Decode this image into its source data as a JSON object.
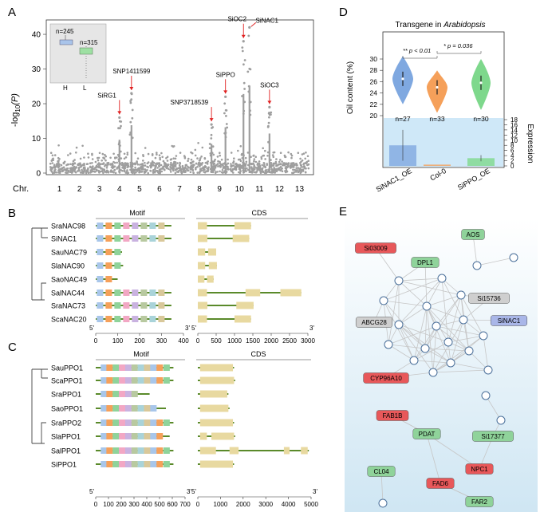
{
  "panels": {
    "A": {
      "letter": "A",
      "ylabel": "-log",
      "ylabel_sub": "10",
      "ylabel_p": "(P)",
      "yticks": [
        "0",
        "10",
        "20",
        "30",
        "40"
      ],
      "xlabel": "Chr.",
      "chromosomes": [
        "1",
        "2",
        "3",
        "4",
        "5",
        "6",
        "7",
        "8",
        "9",
        "10",
        "11",
        "12",
        "13"
      ],
      "inset": {
        "n_h": "n=245",
        "n_l": "n=315",
        "label_h": "H",
        "label_l": "L"
      },
      "snps": [
        {
          "label": "SiRG1",
          "chr": 4,
          "peak": 16
        },
        {
          "label": "SNP1411599",
          "chr": 4.6,
          "peak": 23
        },
        {
          "label": "SNP3718539",
          "chr": 8.6,
          "peak": 14
        },
        {
          "label": "SiPPO",
          "chr": 9.3,
          "peak": 22
        },
        {
          "label": "SiOC2",
          "chr": 10.2,
          "peak": 38
        },
        {
          "label": "SiNAC1",
          "chr": 10.5,
          "peak": 42
        },
        {
          "label": "SiOC3",
          "chr": 11.5,
          "peak": 19
        }
      ]
    },
    "B": {
      "letter": "B",
      "motif_title": "Motif",
      "cds_title": "CDS",
      "genes": [
        "SraNAC98",
        "SiNAC1",
        "SauNAC79",
        "SlaNAC90",
        "SaoNAC49",
        "SalNAC44",
        "SraNAC73",
        "ScaNAC20"
      ],
      "motif_ticks": [
        "0",
        "100",
        "200",
        "300",
        "400"
      ],
      "motif_unit_start": "5'",
      "motif_unit_end": "3'",
      "cds_ticks": [
        "0",
        "500",
        "1000",
        "1500",
        "2000",
        "2500",
        "3000"
      ],
      "cds_unit_start": "5'",
      "cds_unit_end": "3'"
    },
    "C": {
      "letter": "C",
      "motif_title": "Motif",
      "cds_title": "CDS",
      "genes": [
        "SauPPO1",
        "ScaPPO1",
        "SraPPO1",
        "SaoPPO1",
        "SraPPO2",
        "SlaPPO1",
        "SalPPO1",
        "SiPPO1"
      ],
      "motif_ticks": [
        "0",
        "100",
        "200",
        "300",
        "400",
        "500",
        "600",
        "700"
      ],
      "motif_unit_start": "5'",
      "motif_unit_end": "3'",
      "cds_ticks": [
        "0",
        "1000",
        "2000",
        "3000",
        "4000",
        "5000"
      ],
      "cds_unit_start": "5'",
      "cds_unit_end": "3'"
    },
    "D": {
      "letter": "D",
      "title_prefix": "Transgene in ",
      "title_species": "Arabidopsis",
      "ylabel": "Oil content (%)",
      "yticks": [
        "20",
        "22",
        "24",
        "26",
        "28",
        "30"
      ],
      "y2label": "Expression",
      "y2ticks": [
        "0",
        "2",
        "4",
        "6",
        "8",
        "10",
        "12",
        "14",
        "16",
        "18"
      ],
      "sig1": "** p < 0.01",
      "sig2": "* p = 0.036",
      "groups": [
        {
          "name": "SiNAC1_OE",
          "n": "n=27",
          "color": "#7fa8e0",
          "expression": 8
        },
        {
          "name": "Col-0",
          "n": "n=33",
          "color": "#f5a05a",
          "expression": 0.5
        },
        {
          "name": "SiPPO_OE",
          "n": "n=30",
          "color": "#7ed88c",
          "expression": 3
        }
      ]
    },
    "E": {
      "letter": "E",
      "labeled_nodes": [
        {
          "label": "Si03009",
          "color": "#e8585a"
        },
        {
          "label": "AOS",
          "color": "#8fd39a"
        },
        {
          "label": "DPL1",
          "color": "#8fd39a"
        },
        {
          "label": "Si15736",
          "color": "#cfcfcf"
        },
        {
          "label": "ABCG28",
          "color": "#cfcfcf"
        },
        {
          "label": "SiNAC1",
          "color": "#a9b6e8"
        },
        {
          "label": "CYP96A10",
          "color": "#e8585a"
        },
        {
          "label": "FAB1B",
          "color": "#e8585a"
        },
        {
          "label": "PDAT",
          "color": "#8fd39a"
        },
        {
          "label": "Si17377",
          "color": "#8fd39a"
        },
        {
          "label": "CL04",
          "color": "#8fd39a"
        },
        {
          "label": "NPC1",
          "color": "#e8585a"
        },
        {
          "label": "FAD6",
          "color": "#e8585a"
        },
        {
          "label": "FAR2",
          "color": "#8fd39a"
        }
      ]
    }
  }
}
